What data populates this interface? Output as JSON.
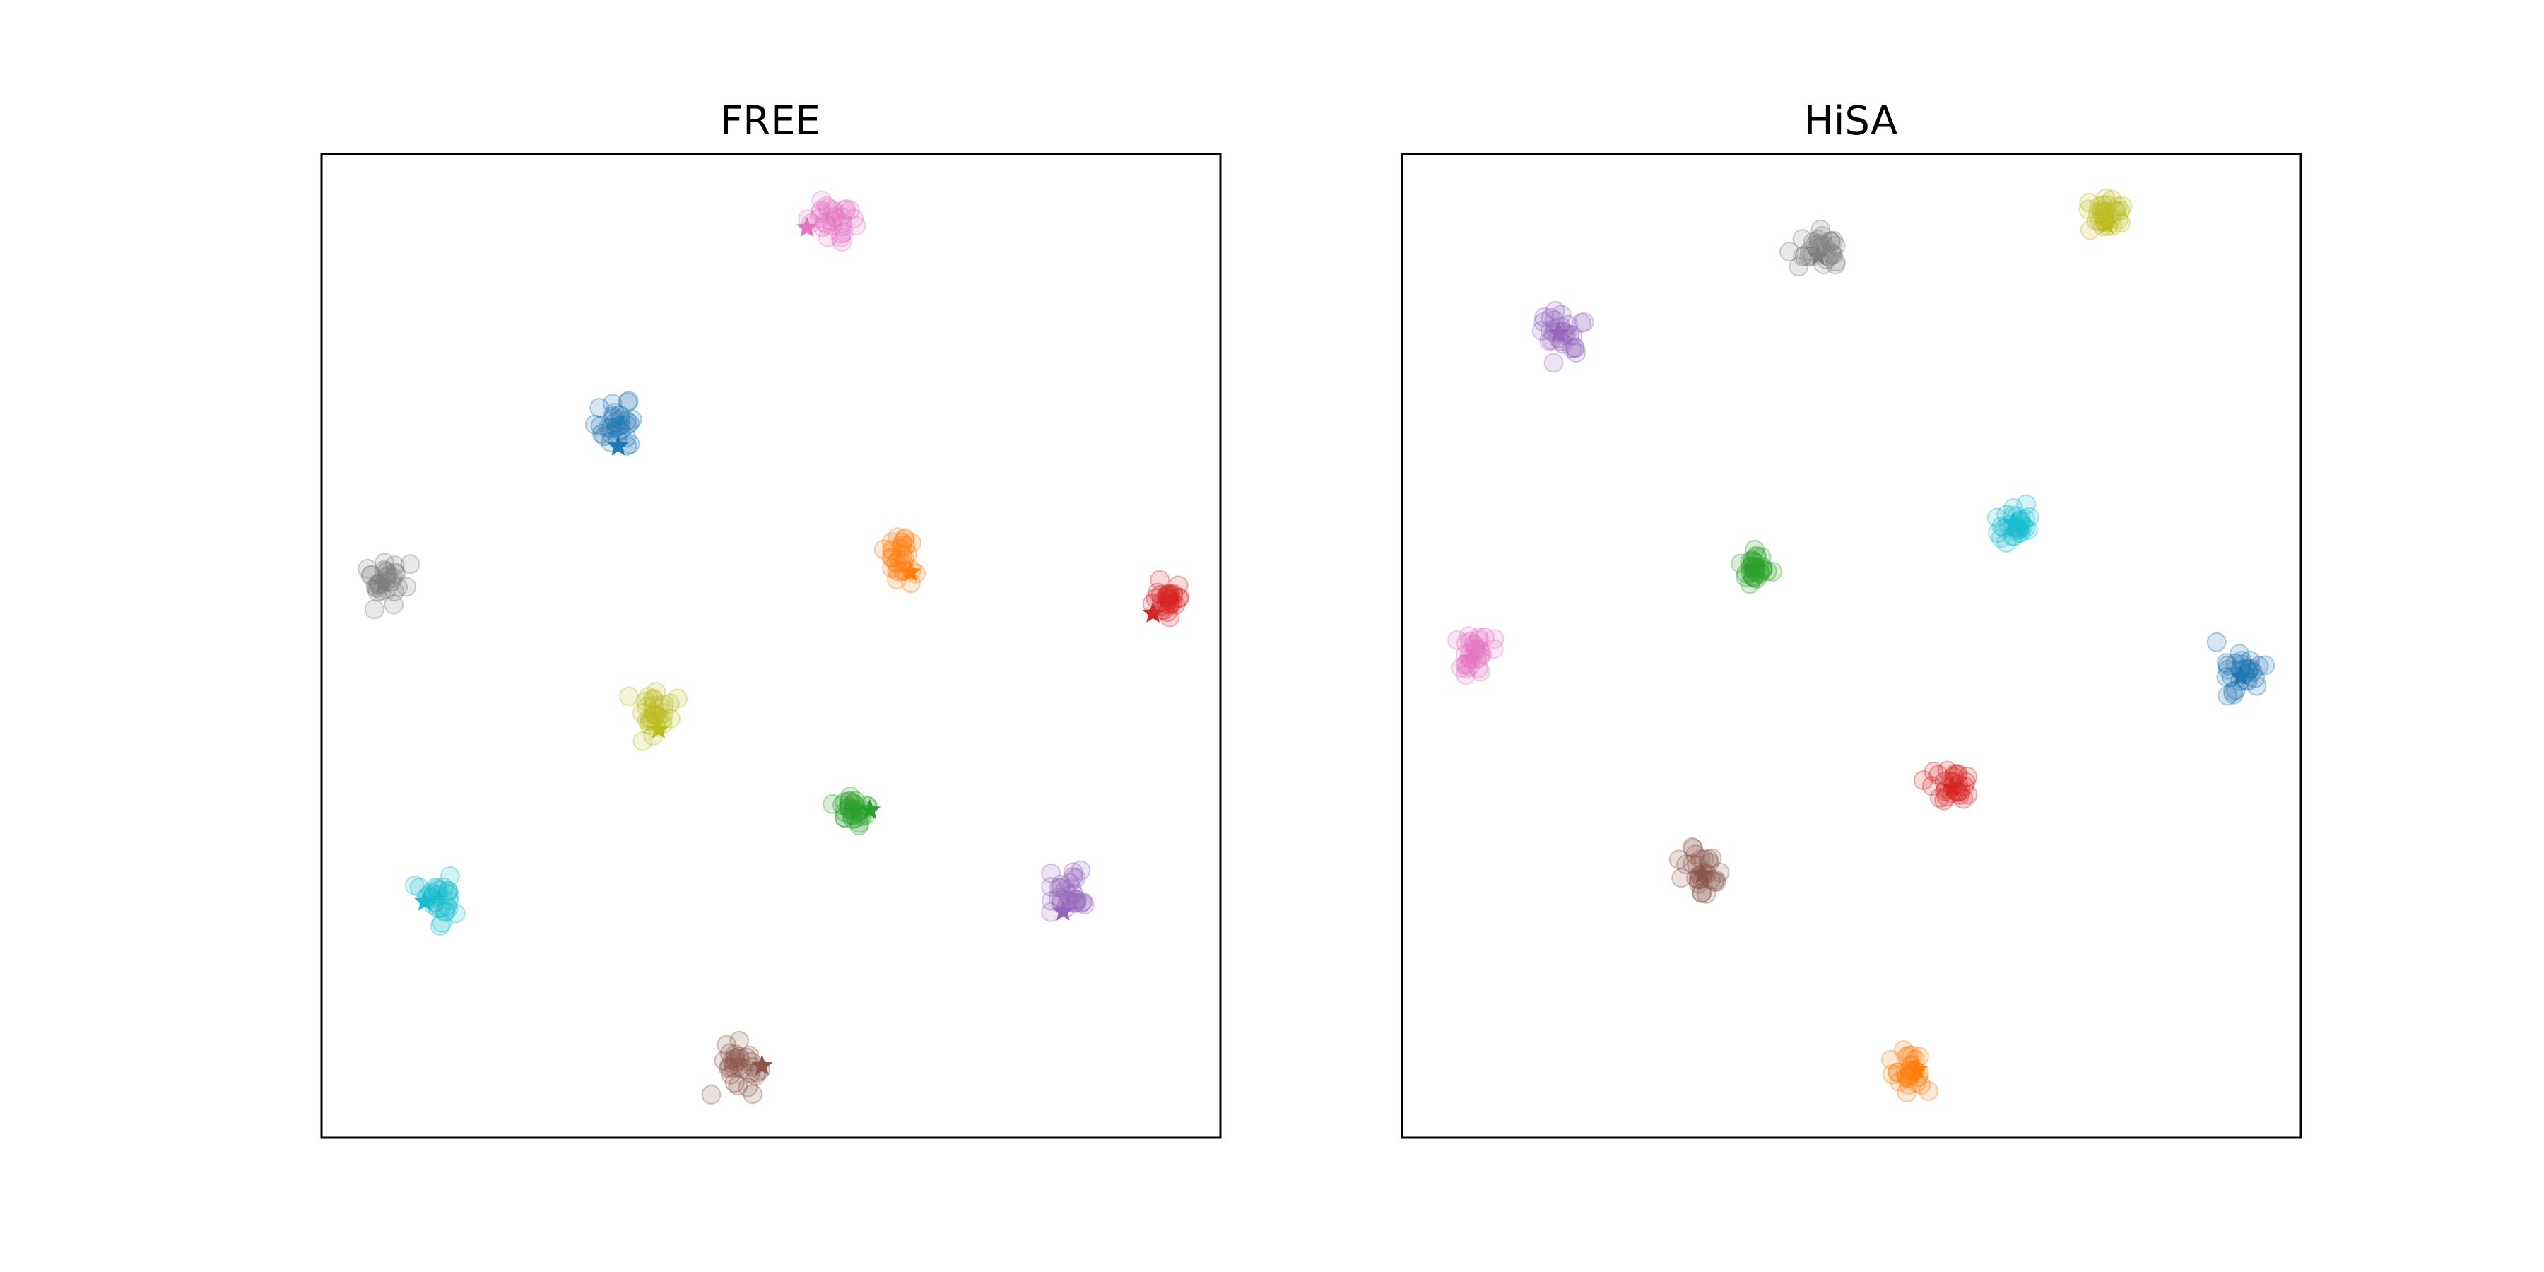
{
  "chart_data": [
    {
      "type": "scatter",
      "title": "FREE",
      "xlim": [
        0,
        100
      ],
      "ylim": [
        0,
        100
      ],
      "grid": false,
      "axes_ticks": false,
      "clusters": [
        {
          "color": "#1f77b4",
          "center": [
            33.0,
            72.5
          ],
          "spread": 2.2,
          "prototype": [
            33.0,
            70.3
          ]
        },
        {
          "color": "#ff7f0e",
          "center": [
            64.5,
            59.0
          ],
          "spread": 1.8,
          "prototype": [
            65.5,
            57.5
          ]
        },
        {
          "color": "#2ca02c",
          "center": [
            59.0,
            33.0
          ],
          "spread": 1.6,
          "prototype": [
            61.0,
            33.3
          ]
        },
        {
          "color": "#d62728",
          "center": [
            94.0,
            54.5
          ],
          "spread": 1.6,
          "prototype": [
            92.5,
            53.3
          ]
        },
        {
          "color": "#9467bd",
          "center": [
            83.0,
            25.0
          ],
          "spread": 1.8,
          "prototype": [
            82.5,
            23.0
          ]
        },
        {
          "color": "#8c564b",
          "center": [
            46.5,
            7.0
          ],
          "spread": 2.4,
          "prototype": [
            49.0,
            7.3
          ]
        },
        {
          "color": "#e377c2",
          "center": [
            57.0,
            93.0
          ],
          "spread": 2.4,
          "prototype": [
            54.0,
            92.5
          ]
        },
        {
          "color": "#7f7f7f",
          "center": [
            7.0,
            56.5
          ],
          "spread": 2.0,
          "prototype": [
            6.8,
            56.3
          ]
        },
        {
          "color": "#bcbd22",
          "center": [
            36.5,
            43.0
          ],
          "spread": 2.2,
          "prototype": [
            37.5,
            41.5
          ]
        },
        {
          "color": "#17becf",
          "center": [
            13.0,
            24.5
          ],
          "spread": 2.4,
          "prototype": [
            11.5,
            24.0
          ]
        }
      ]
    },
    {
      "type": "scatter",
      "title": "HiSA",
      "xlim": [
        0,
        100
      ],
      "ylim": [
        0,
        100
      ],
      "grid": false,
      "axes_ticks": false,
      "clusters": [
        {
          "color": "#1f77b4",
          "center": [
            93.3,
            46.9
          ],
          "spread": 2.2,
          "prototype": [
            93.3,
            46.9
          ]
        },
        {
          "color": "#ff7f0e",
          "center": [
            56.3,
            6.6
          ],
          "spread": 1.6,
          "prototype": [
            57.3,
            6.9
          ]
        },
        {
          "color": "#2ca02c",
          "center": [
            39.2,
            57.8
          ],
          "spread": 1.4,
          "prototype": [
            39.2,
            57.8
          ]
        },
        {
          "color": "#d62728",
          "center": [
            61.2,
            35.6
          ],
          "spread": 1.6,
          "prototype": [
            61.2,
            35.6
          ]
        },
        {
          "color": "#9467bd",
          "center": [
            17.4,
            81.8
          ],
          "spread": 2.0,
          "prototype": [
            17.4,
            81.8
          ]
        },
        {
          "color": "#8c564b",
          "center": [
            33.4,
            26.8
          ],
          "spread": 2.2,
          "prototype": [
            33.4,
            26.8
          ]
        },
        {
          "color": "#e377c2",
          "center": [
            7.6,
            49.3
          ],
          "spread": 2.2,
          "prototype": [
            7.6,
            48.7
          ]
        },
        {
          "color": "#7f7f7f",
          "center": [
            46.3,
            90.0
          ],
          "spread": 1.8,
          "prototype": [
            46.3,
            89.6
          ]
        },
        {
          "color": "#bcbd22",
          "center": [
            78.4,
            93.9
          ],
          "spread": 1.8,
          "prototype": [
            78.4,
            92.8
          ]
        },
        {
          "color": "#17becf",
          "center": [
            68.0,
            62.5
          ],
          "spread": 2.0,
          "prototype": [
            68.0,
            62.5
          ]
        }
      ]
    }
  ]
}
